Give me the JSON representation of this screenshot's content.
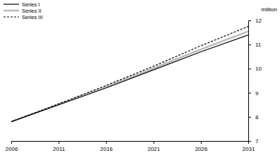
{
  "chart_data": {
    "type": "line",
    "ylabel": "million",
    "x": [
      2006,
      2011,
      2016,
      2021,
      2026,
      2031
    ],
    "series": [
      {
        "name": "Series I",
        "color": "#000000",
        "line_style": "solid",
        "values": [
          7.8,
          8.5,
          9.2,
          9.95,
          10.7,
          11.4
        ]
      },
      {
        "name": "Series II",
        "color": "#bbbbbb",
        "line_style": "solid",
        "values": [
          7.8,
          8.52,
          9.25,
          10.02,
          10.8,
          11.55
        ]
      },
      {
        "name": "Series III",
        "color": "#000000",
        "line_style": "dashed",
        "values": [
          7.8,
          8.54,
          9.3,
          10.1,
          10.95,
          11.75
        ]
      }
    ],
    "xlim": [
      2006,
      2031
    ],
    "xticks": [
      2006,
      2011,
      2016,
      2021,
      2026,
      2031
    ],
    "ylim": [
      7,
      12
    ],
    "yticks": [
      7,
      8,
      9,
      10,
      11,
      12
    ],
    "grid": false,
    "legend": "upper left"
  }
}
